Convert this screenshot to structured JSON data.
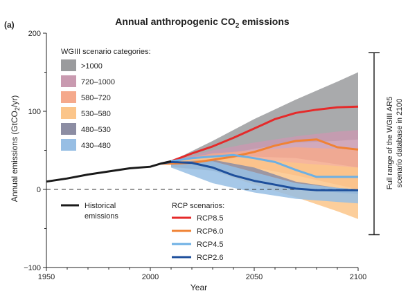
{
  "panel_label": "(a)",
  "chart_data": {
    "type": "area",
    "title": "Annual anthropogenic CO",
    "title_sub": "2",
    "title_rest": " emissions",
    "xlabel": "Year",
    "ylabel_pre": "Annual emissions (GtCO",
    "ylabel_sub": "2",
    "ylabel_post": "/yr)",
    "xlim": [
      1950,
      2100
    ],
    "ylim": [
      -100,
      200
    ],
    "x_ticks": [
      1950,
      2000,
      2050,
      2100
    ],
    "x_tick_labels": [
      "1950",
      "2000",
      "2050",
      "2100"
    ],
    "y_ticks": [
      -100,
      0,
      100,
      200
    ],
    "y_tick_labels": [
      "−100",
      "0",
      "100",
      "200"
    ],
    "zero_line": "dashed",
    "grid": false,
    "category_legend": {
      "title": "WGIII scenario categories:",
      "items": [
        {
          "label": ">1000",
          "color": "#9a9b9d"
        },
        {
          "label": "720–1000",
          "color": "#c99ab0"
        },
        {
          "label": "580–720",
          "color": "#f5a98c"
        },
        {
          "label": "530–580",
          "color": "#fbc58a"
        },
        {
          "label": "480–530",
          "color": "#8c8da3"
        },
        {
          "label": "430–480",
          "color": "#97bee4"
        }
      ]
    },
    "historical_legend": {
      "label_line1": "Historical",
      "label_line2": "emissions",
      "color": "#1a1a1a"
    },
    "rcp_legend": {
      "title": "RCP scenarios:",
      "items": [
        {
          "label": "RCP8.5",
          "color": "#e52a2a"
        },
        {
          "label": "RCP6.0",
          "color": "#f08234"
        },
        {
          "label": "RCP4.5",
          "color": "#6cb0e4"
        },
        {
          "label": "RCP2.6",
          "color": "#1d4f9c"
        }
      ]
    },
    "range_bar": {
      "label_line1": "Full range of the WGIII AR5",
      "label_line2": "scenario database in 2100",
      "low": -58,
      "high": 175
    },
    "historical": {
      "x": [
        1950,
        1960,
        1970,
        1980,
        1990,
        2000,
        2005,
        2010
      ],
      "y": [
        10,
        14,
        19,
        23,
        27,
        29,
        33,
        36
      ]
    },
    "bands": [
      {
        "category": ">1000",
        "color": "#9a9b9d",
        "x": [
          2010,
          2030,
          2050,
          2070,
          2090,
          2100
        ],
        "upper": [
          36,
          62,
          90,
          115,
          138,
          150
        ],
        "lower": [
          32,
          42,
          52,
          60,
          62,
          64
        ]
      },
      {
        "category": "720–1000",
        "color": "#c99ab0",
        "x": [
          2010,
          2030,
          2050,
          2070,
          2090,
          2100
        ],
        "upper": [
          36,
          50,
          60,
          68,
          74,
          76
        ],
        "lower": [
          32,
          40,
          42,
          40,
          32,
          28
        ]
      },
      {
        "category": "580–720",
        "color": "#f5a98c",
        "x": [
          2010,
          2030,
          2050,
          2070,
          2090,
          2100
        ],
        "upper": [
          36,
          46,
          50,
          54,
          52,
          50
        ],
        "lower": [
          30,
          34,
          28,
          18,
          6,
          0
        ]
      },
      {
        "category": "530–580",
        "color": "#fbc58a",
        "x": [
          2010,
          2030,
          2050,
          2070,
          2090,
          2100
        ],
        "upper": [
          35,
          42,
          40,
          34,
          30,
          28
        ],
        "lower": [
          28,
          24,
          6,
          -10,
          -28,
          -38
        ]
      },
      {
        "category": "480–530",
        "color": "#8c8da3",
        "x": [
          2010,
          2030,
          2050,
          2070,
          2090,
          2100
        ],
        "upper": [
          35,
          38,
          28,
          10,
          2,
          0
        ],
        "lower": [
          29,
          24,
          10,
          0,
          -4,
          -6
        ]
      },
      {
        "category": "430–480",
        "color": "#97bee4",
        "x": [
          2010,
          2030,
          2050,
          2070,
          2090,
          2100
        ],
        "upper": [
          34,
          36,
          22,
          8,
          2,
          0
        ],
        "lower": [
          28,
          8,
          -4,
          -12,
          -16,
          -18
        ]
      }
    ],
    "series": [
      {
        "name": "RCP8.5",
        "color": "#e52a2a",
        "x": [
          2005,
          2010,
          2020,
          2030,
          2040,
          2050,
          2060,
          2070,
          2080,
          2090,
          2100
        ],
        "y": [
          33,
          36,
          46,
          55,
          66,
          78,
          90,
          98,
          102,
          105,
          106
        ]
      },
      {
        "name": "RCP6.0",
        "color": "#f08234",
        "x": [
          2005,
          2010,
          2020,
          2030,
          2040,
          2050,
          2060,
          2070,
          2080,
          2090,
          2100
        ],
        "y": [
          33,
          33,
          34,
          38,
          42,
          48,
          56,
          62,
          64,
          54,
          51
        ]
      },
      {
        "name": "RCP4.5",
        "color": "#6cb0e4",
        "x": [
          2005,
          2010,
          2020,
          2030,
          2040,
          2050,
          2060,
          2070,
          2080,
          2090,
          2100
        ],
        "y": [
          33,
          36,
          40,
          42,
          44,
          40,
          35,
          25,
          16,
          16,
          16
        ]
      },
      {
        "name": "RCP2.6",
        "color": "#1d4f9c",
        "x": [
          2005,
          2010,
          2020,
          2030,
          2040,
          2050,
          2060,
          2070,
          2080,
          2090,
          2100
        ],
        "y": [
          33,
          35,
          34,
          28,
          18,
          11,
          6,
          1,
          -1,
          -1,
          -1
        ]
      }
    ]
  }
}
